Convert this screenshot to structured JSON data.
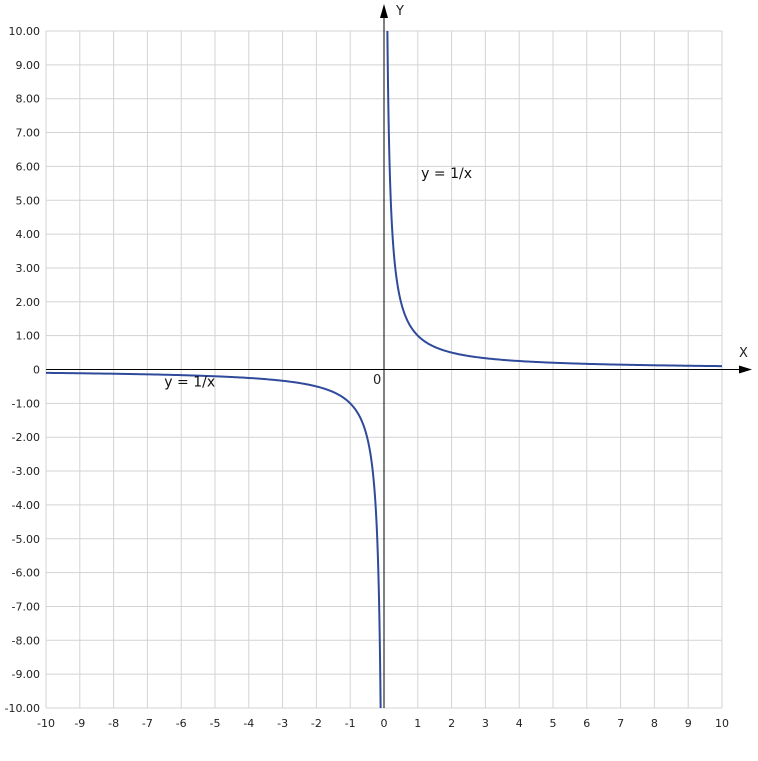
{
  "chart_data": {
    "type": "line",
    "xlabel": "X",
    "ylabel": "Y",
    "xlim": [
      -10,
      10
    ],
    "ylim": [
      -10,
      10
    ],
    "grid": true,
    "x_ticks": [
      "-10",
      "-9",
      "-8",
      "-7",
      "-6",
      "-5",
      "-4",
      "-3",
      "-2",
      "-1",
      "0",
      "1",
      "2",
      "3",
      "4",
      "5",
      "6",
      "7",
      "8",
      "9",
      "10"
    ],
    "y_ticks": [
      "-10.00",
      "-9.00",
      "-8.00",
      "-7.00",
      "-6.00",
      "-5.00",
      "-4.00",
      "-3.00",
      "-2.00",
      "-1.00",
      "0",
      "1.00",
      "2.00",
      "3.00",
      "4.00",
      "5.00",
      "6.00",
      "7.00",
      "8.00",
      "9.00",
      "10.00"
    ],
    "origin_label": "0",
    "series": [
      {
        "function": "1/x",
        "color": "#2f4a9a",
        "x": [
          -10,
          -8,
          -6,
          -5,
          -4,
          -3,
          -2,
          -1.5,
          -1,
          -0.75,
          -0.5,
          -0.4,
          -0.3,
          -0.25,
          -0.2,
          -0.15,
          -0.12,
          -0.1
        ],
        "y": [
          -0.1,
          -0.125,
          -0.167,
          -0.2,
          -0.25,
          -0.333,
          -0.5,
          -0.667,
          -1,
          -1.333,
          -2,
          -2.5,
          -3.333,
          -4,
          -5,
          -6.667,
          -8.333,
          -10
        ]
      },
      {
        "function": "1/x",
        "color": "#2f4a9a",
        "x": [
          0.1,
          0.12,
          0.15,
          0.2,
          0.25,
          0.3,
          0.4,
          0.5,
          0.75,
          1,
          1.5,
          2,
          3,
          4,
          5,
          6,
          8,
          10
        ],
        "y": [
          10,
          8.333,
          6.667,
          5,
          4,
          3.333,
          2.5,
          2,
          1.333,
          1,
          0.667,
          0.5,
          0.333,
          0.25,
          0.2,
          0.167,
          0.125,
          0.1
        ]
      }
    ],
    "annotations": [
      {
        "text": "y = 1/x",
        "x": 1.1,
        "y": 5.65
      },
      {
        "text": "y = 1/x",
        "x": -6.5,
        "y": -0.5
      }
    ]
  }
}
